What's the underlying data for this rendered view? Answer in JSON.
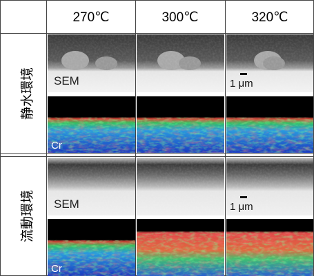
{
  "header": {
    "columns": [
      "270℃",
      "300℃",
      "320℃"
    ]
  },
  "groups": [
    {
      "label": "静水環境",
      "sem_label": "SEM",
      "map_label": "Cr",
      "scale_bar": "1 μm"
    },
    {
      "label": "流動環境",
      "sem_label": "SEM",
      "map_label": "Cr",
      "scale_bar": "1 μm"
    }
  ]
}
